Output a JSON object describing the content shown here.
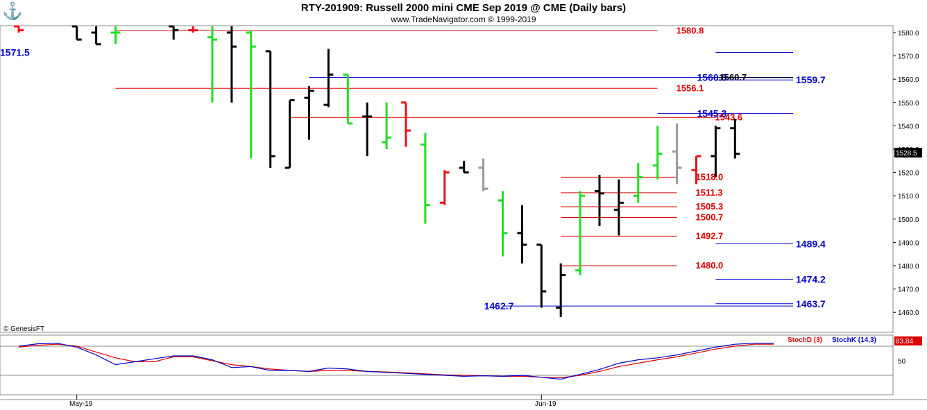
{
  "header": {
    "title": "RTY-201909:  Russell 2000 mini CME Sep 2019 @ CME  (Daily bars)",
    "subtitle": "www.TradeNavigator.com © 1999-2019",
    "copyright": "© GenesisFT",
    "logo_icon": "genesis-logo-icon"
  },
  "colors": {
    "up_bar": "#22dd22",
    "down_bar": "#ee1111",
    "neutral_bar": "#000000",
    "gray_bar": "#999999",
    "red_level": "#dd0000",
    "blue_level": "#0000cc",
    "black_level": "#000000",
    "stochD": "#dd0000",
    "stochK": "#0000cc"
  },
  "chart_data": [
    {
      "type": "ohlc",
      "name": "price",
      "y_ticks": [
        1460,
        1470,
        1480,
        1490,
        1500,
        1510,
        1520,
        1530,
        1540,
        1550,
        1560,
        1570,
        1580
      ],
      "y_tick_labels": [
        "1460.0",
        "1470.0",
        "1480.0",
        "1490.0",
        "1500.0",
        "1510.0",
        "1520.0",
        "1530.0",
        "1540.0",
        "1550.0",
        "1560.0",
        "1570.0",
        "1580.0"
      ],
      "ylim": [
        1455,
        1583
      ],
      "last_price_label": "1528.5",
      "x_labels": [
        {
          "date": "May-19",
          "bar": 3
        },
        {
          "date": "Jun-19",
          "bar": 27
        }
      ],
      "bars": [
        {
          "i": 0,
          "o": 1585,
          "h": 1586,
          "l": 1580,
          "c": 1581,
          "color": "red"
        },
        {
          "i": 3,
          "o": 1585,
          "h": 1585,
          "l": 1577,
          "c": 1577,
          "color": "black"
        },
        {
          "i": 4,
          "o": 1580,
          "h": 1584,
          "l": 1575,
          "c": 1575,
          "color": "black"
        },
        {
          "i": 5,
          "o": 1580,
          "h": 1586,
          "l": 1575,
          "c": 1580,
          "color": "green"
        },
        {
          "i": 8,
          "o": 1583,
          "h": 1586,
          "l": 1577,
          "c": 1581,
          "color": "black"
        },
        {
          "i": 9,
          "o": 1581,
          "h": 1586,
          "l": 1580,
          "c": 1581,
          "color": "red"
        },
        {
          "i": 10,
          "o": 1578,
          "h": 1583,
          "l": 1550,
          "c": 1577,
          "color": "green"
        },
        {
          "i": 11,
          "o": 1580,
          "h": 1590,
          "l": 1550,
          "c": 1574,
          "color": "black"
        },
        {
          "i": 12,
          "o": 1580,
          "h": 1581,
          "l": 1526,
          "c": 1574,
          "color": "green"
        },
        {
          "i": 13,
          "o": 1572,
          "h": 1572,
          "l": 1522,
          "c": 1527,
          "color": "black"
        },
        {
          "i": 14,
          "o": 1522,
          "h": 1551,
          "l": 1522,
          "c": 1551,
          "color": "black"
        },
        {
          "i": 15,
          "o": 1552,
          "h": 1557,
          "l": 1534,
          "c": 1555,
          "color": "black"
        },
        {
          "i": 16,
          "o": 1549,
          "h": 1573,
          "l": 1548,
          "c": 1562,
          "color": "black"
        },
        {
          "i": 17,
          "o": 1562,
          "h": 1562,
          "l": 1541,
          "c": 1541,
          "color": "green"
        },
        {
          "i": 18,
          "o": 1544,
          "h": 1550,
          "l": 1527,
          "c": 1544,
          "color": "black"
        },
        {
          "i": 19,
          "o": 1533,
          "h": 1550,
          "l": 1530,
          "c": 1535,
          "color": "green"
        },
        {
          "i": 20,
          "o": 1550,
          "h": 1550,
          "l": 1531,
          "c": 1538,
          "color": "red"
        },
        {
          "i": 21,
          "o": 1532,
          "h": 1537,
          "l": 1498,
          "c": 1506,
          "color": "green"
        },
        {
          "i": 22,
          "o": 1507,
          "h": 1521,
          "l": 1506,
          "c": 1520,
          "color": "red"
        },
        {
          "i": 23,
          "o": 1522,
          "h": 1525,
          "l": 1520,
          "c": 1520,
          "color": "black"
        },
        {
          "i": 24,
          "o": 1522,
          "h": 1526,
          "l": 1512,
          "c": 1513,
          "color": "gray"
        },
        {
          "i": 25,
          "o": 1508,
          "h": 1512,
          "l": 1484,
          "c": 1494,
          "color": "green"
        },
        {
          "i": 26,
          "o": 1494,
          "h": 1506,
          "l": 1481,
          "c": 1489,
          "color": "black"
        },
        {
          "i": 27,
          "o": 1489,
          "h": 1489,
          "l": 1462,
          "c": 1469,
          "color": "black"
        },
        {
          "i": 28,
          "o": 1462,
          "h": 1481,
          "l": 1458,
          "c": 1476,
          "color": "black"
        },
        {
          "i": 29,
          "o": 1478,
          "h": 1512,
          "l": 1476,
          "c": 1510,
          "color": "green"
        },
        {
          "i": 30,
          "o": 1512,
          "h": 1519,
          "l": 1497,
          "c": 1511,
          "color": "black"
        },
        {
          "i": 31,
          "o": 1504,
          "h": 1517,
          "l": 1493,
          "c": 1507,
          "color": "black"
        },
        {
          "i": 32,
          "o": 1510,
          "h": 1524,
          "l": 1507,
          "c": 1518,
          "color": "green"
        },
        {
          "i": 33,
          "o": 1523,
          "h": 1540,
          "l": 1517,
          "c": 1528,
          "color": "green"
        },
        {
          "i": 34,
          "o": 1529,
          "h": 1541,
          "l": 1515,
          "c": 1522,
          "color": "gray"
        },
        {
          "i": 35,
          "o": 1521,
          "h": 1527,
          "l": 1515,
          "c": 1527,
          "color": "red"
        },
        {
          "i": 36,
          "o": 1527,
          "h": 1540,
          "l": 1518,
          "c": 1539,
          "color": "black"
        },
        {
          "i": 37,
          "o": 1539,
          "h": 1543,
          "l": 1526,
          "c": 1528,
          "color": "black"
        }
      ],
      "levels": [
        {
          "value": 1580.8,
          "label": "1580.8",
          "color": "red",
          "from": 5,
          "to": 33,
          "label_pos": "right",
          "label_at": 34
        },
        {
          "value": 1571.5,
          "label": "1571.5",
          "color": "blue",
          "from": 36,
          "to": 40,
          "label_pos": "left"
        },
        {
          "value": 1560.8,
          "label": "1560.8",
          "color": "blue",
          "from": 15,
          "to": 40,
          "label_pos": "left_on",
          "label_at": 35
        },
        {
          "value": 1560.7,
          "label": "1560.7",
          "color": "black",
          "from": 36,
          "to": 40,
          "label_pos": "inline",
          "label_at": 36
        },
        {
          "value": 1559.7,
          "label": "1559.7",
          "color": "blue",
          "from": 36,
          "to": 40,
          "label_pos": "right"
        },
        {
          "value": 1556.1,
          "label": "1556.1",
          "color": "red",
          "from": 5,
          "to": 33,
          "label_pos": "right",
          "label_at": 34
        },
        {
          "value": 1545.3,
          "label": "1545.3",
          "color": "blue",
          "from": 33,
          "to": 40,
          "label_pos": "left_on",
          "label_at": 35
        },
        {
          "value": 1543.6,
          "label": "1543.6",
          "color": "red",
          "from": 14,
          "to": 36,
          "label_pos": "right",
          "label_at": 36
        },
        {
          "value": 1518.0,
          "label": "1518.0",
          "color": "red",
          "from": 28,
          "to": 34,
          "label_pos": "right",
          "label_at": 35
        },
        {
          "value": 1511.3,
          "label": "1511.3",
          "color": "red",
          "from": 28,
          "to": 34,
          "label_pos": "right",
          "label_at": 35
        },
        {
          "value": 1505.3,
          "label": "1505.3",
          "color": "red",
          "from": 28,
          "to": 34,
          "label_pos": "right",
          "label_at": 35
        },
        {
          "value": 1500.7,
          "label": "1500.7",
          "color": "red",
          "from": 28,
          "to": 34,
          "label_pos": "right",
          "label_at": 35
        },
        {
          "value": 1492.7,
          "label": "1492.7",
          "color": "red",
          "from": 28,
          "to": 34,
          "label_pos": "right",
          "label_at": 35
        },
        {
          "value": 1489.4,
          "label": "1489.4",
          "color": "blue",
          "from": 36,
          "to": 40,
          "label_pos": "right"
        },
        {
          "value": 1480.0,
          "label": "1480.0",
          "color": "red",
          "from": 28,
          "to": 34,
          "label_pos": "right",
          "label_at": 35
        },
        {
          "value": 1474.2,
          "label": "1474.2",
          "color": "blue",
          "from": 36,
          "to": 40,
          "label_pos": "right"
        },
        {
          "value": 1463.7,
          "label": "1463.7",
          "color": "blue",
          "from": 36,
          "to": 40,
          "label_pos": "right"
        },
        {
          "value": 1462.7,
          "label": "1462.7",
          "color": "blue",
          "from": 25,
          "to": 40,
          "label_pos": "left_on",
          "label_at": 24
        }
      ]
    },
    {
      "type": "line",
      "name": "stochastic",
      "ylim": [
        0,
        100
      ],
      "y_ticks": [
        50
      ],
      "y_tick_labels": [
        "50"
      ],
      "overbought": 80,
      "oversold": 20,
      "last_value_label": "83.84",
      "legend": [
        "StochD (3)",
        "StochK (14,3)"
      ],
      "series": [
        {
          "name": "StochD (3)",
          "color": "red",
          "values": [
            78,
            82,
            84,
            80,
            68,
            56,
            48,
            48,
            58,
            58,
            50,
            42,
            38,
            33,
            30,
            28,
            30,
            30,
            28,
            27,
            25,
            23,
            21,
            20,
            19,
            18,
            18,
            16,
            15,
            20,
            28,
            38,
            45,
            52,
            58,
            66,
            74,
            80,
            84,
            84
          ]
        },
        {
          "name": "StochK (14,3)",
          "color": "blue",
          "values": [
            80,
            85,
            86,
            78,
            62,
            42,
            48,
            54,
            60,
            60,
            52,
            36,
            38,
            30,
            30,
            28,
            35,
            33,
            28,
            26,
            24,
            22,
            20,
            18,
            19,
            18,
            20,
            16,
            12,
            22,
            32,
            45,
            52,
            56,
            62,
            70,
            78,
            84,
            86,
            86
          ]
        }
      ]
    }
  ]
}
